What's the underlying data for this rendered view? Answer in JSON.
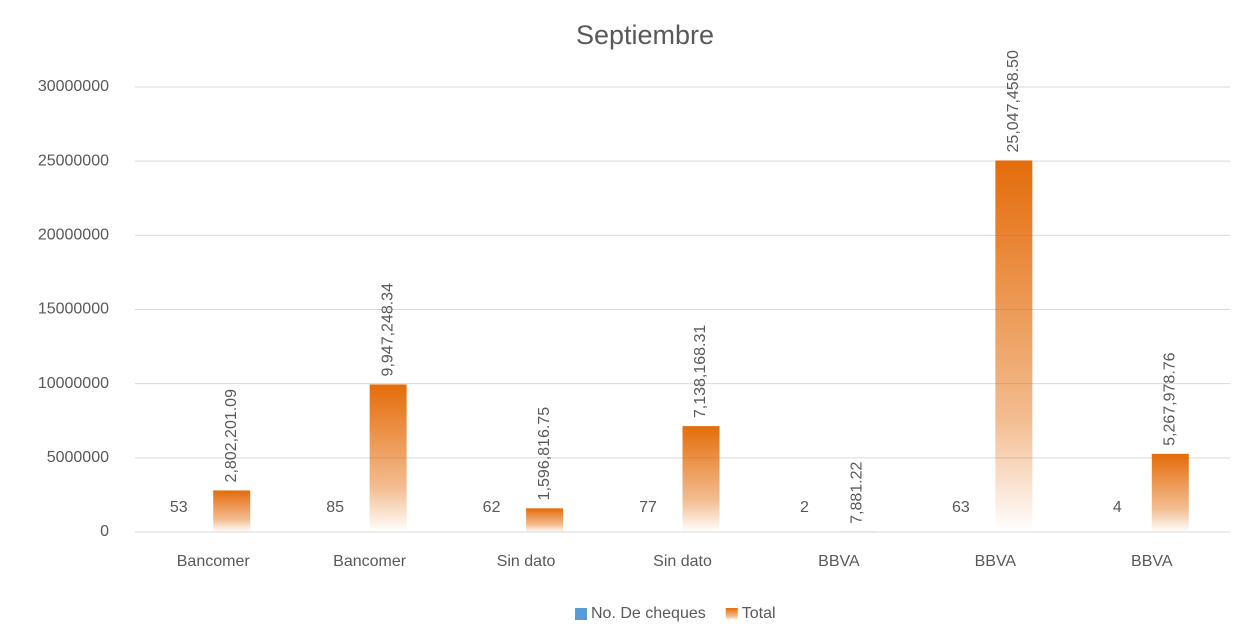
{
  "chart_data": {
    "type": "bar",
    "title": "Septiembre",
    "categories": [
      "Bancomer",
      "Bancomer",
      "Sin dato",
      "Sin dato",
      "BBVA",
      "BBVA",
      "BBVA"
    ],
    "series": [
      {
        "name": "No. De cheques",
        "color": "#5b9bd5",
        "values": [
          53,
          85,
          62,
          77,
          2,
          63,
          4
        ]
      },
      {
        "name": "Total",
        "color": "#e46c0a",
        "gradient": true,
        "values": [
          2802201.09,
          9947248.34,
          1596816.75,
          7138168.31,
          7881.22,
          25047458.5,
          5267978.76
        ],
        "value_labels": [
          "2,802,201.09",
          "9,947,248.34",
          "1,596,816.75",
          "7,138,168.31",
          "7,881.22",
          "25,047,458.50",
          "5,267,978.76"
        ]
      }
    ],
    "ylim": [
      0,
      30000000
    ],
    "yticks": [
      0,
      5000000,
      10000000,
      15000000,
      20000000,
      25000000,
      30000000
    ],
    "grid": true,
    "legend": "bottom"
  }
}
